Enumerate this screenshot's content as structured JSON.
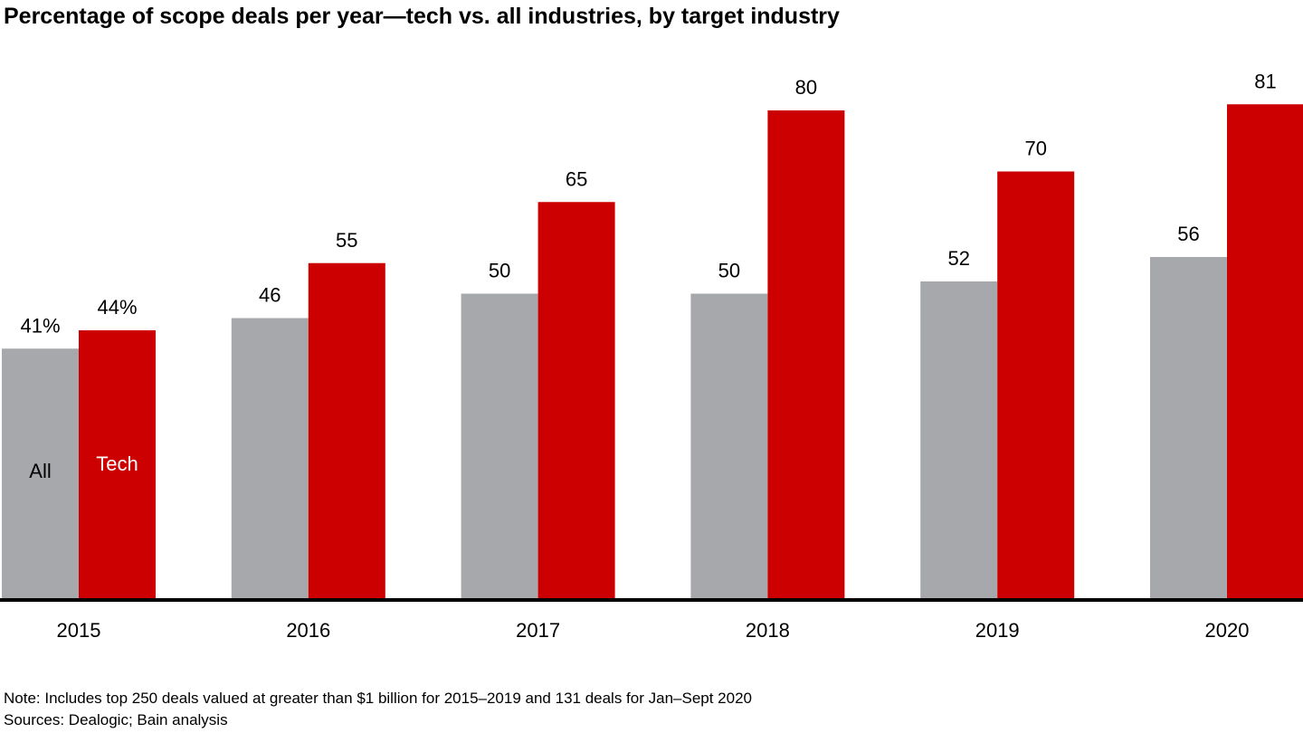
{
  "chart_data": {
    "type": "bar",
    "title": "Percentage of scope deals per year—tech vs. all industries, by target industry",
    "categories": [
      "2015",
      "2016",
      "2017",
      "2018",
      "2019",
      "2020"
    ],
    "series": [
      {
        "name": "All",
        "color": "#a7a8ac",
        "label_color": "#000000",
        "values": [
          41,
          46,
          50,
          50,
          52,
          56
        ],
        "labels": [
          "41%",
          "46",
          "50",
          "50",
          "52",
          "56"
        ]
      },
      {
        "name": "Tech",
        "color": "#cc0000",
        "label_color": "#ffffff",
        "values": [
          44,
          55,
          65,
          80,
          70,
          81
        ],
        "labels": [
          "44%",
          "55",
          "65",
          "80",
          "70",
          "81"
        ]
      }
    ],
    "xlabel": "",
    "ylabel": "",
    "ylim": [
      0,
      98
    ],
    "grid": false,
    "legend": "inside first bar pair"
  },
  "footer": {
    "note": "Note: Includes top 250 deals valued at greater than $1 billion for 2015–2019 and 131 deals for Jan–Sept 2020",
    "sources": "Sources: Dealogic; Bain analysis"
  }
}
